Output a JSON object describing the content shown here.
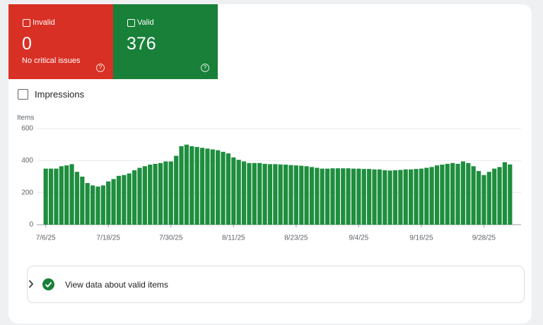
{
  "cards": [
    {
      "label": "Invalid",
      "value": 0,
      "note": "No critical issues"
    },
    {
      "label": "Valid",
      "value": 376
    }
  ],
  "impressions": "Impressions",
  "link": "View data about valid items",
  "chart_data": {
    "type": "bar",
    "y_label": "Items",
    "color": "#1e8e3e",
    "categories": [
      "7/6/25",
      null,
      null,
      null,
      null,
      null,
      null,
      null,
      null,
      null,
      null,
      null,
      "7/18/25",
      null,
      null,
      null,
      null,
      null,
      null,
      null,
      null,
      null,
      null,
      null,
      "7/30/25",
      null,
      null,
      null,
      null,
      null,
      null,
      null,
      null,
      null,
      null,
      null,
      "8/11/25",
      null,
      null,
      null,
      null,
      null,
      null,
      null,
      null,
      null,
      null,
      null,
      "8/23/25",
      null,
      null,
      null,
      null,
      null,
      null,
      null,
      null,
      null,
      null,
      null,
      "9/4/25",
      null,
      null,
      null,
      null,
      null,
      null,
      null,
      null,
      null,
      null,
      null,
      "9/16/25",
      null,
      null,
      null,
      null,
      null,
      null,
      null,
      null,
      null,
      null,
      null,
      "9/28/25",
      null,
      null,
      null,
      null,
      null
    ],
    "values": [
      350,
      350,
      350,
      365,
      370,
      378,
      330,
      300,
      260,
      245,
      238,
      245,
      270,
      285,
      305,
      310,
      320,
      340,
      355,
      365,
      375,
      380,
      385,
      395,
      395,
      430,
      490,
      500,
      490,
      485,
      480,
      475,
      470,
      465,
      455,
      445,
      420,
      405,
      395,
      385,
      385,
      385,
      380,
      378,
      378,
      376,
      375,
      372,
      370,
      368,
      365,
      360,
      355,
      350,
      350,
      352,
      352,
      352,
      352,
      350,
      350,
      348,
      348,
      345,
      345,
      340,
      338,
      340,
      342,
      345,
      345,
      348,
      350,
      355,
      360,
      370,
      375,
      380,
      385,
      380,
      395,
      385,
      365,
      335,
      310,
      330,
      350,
      360,
      390,
      376
    ],
    "ylim": [
      0,
      600
    ],
    "yticks": [
      0,
      200,
      400,
      600
    ],
    "grid": true
  }
}
